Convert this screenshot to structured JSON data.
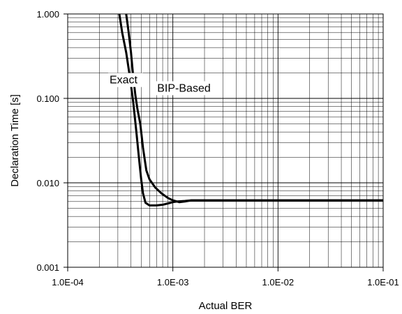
{
  "chart_data": {
    "type": "line",
    "xlabel": "Actual BER",
    "ylabel": "Declaration Time  [s]",
    "x_scale": "log",
    "y_scale": "log",
    "xlim": [
      0.0001,
      0.1
    ],
    "ylim": [
      0.001,
      1.0
    ],
    "grid": true,
    "x_ticks": [
      {
        "value": 0.0001,
        "label": "1.0E-04"
      },
      {
        "value": 0.001,
        "label": "1.0E-03"
      },
      {
        "value": 0.01,
        "label": "1.0E-02"
      },
      {
        "value": 0.1,
        "label": "1.0E-01"
      }
    ],
    "y_ticks": [
      {
        "value": 0.001,
        "label": "0.001"
      },
      {
        "value": 0.01,
        "label": "0.010"
      },
      {
        "value": 0.1,
        "label": "0.100"
      },
      {
        "value": 1.0,
        "label": "1.000"
      }
    ],
    "series": [
      {
        "name": "Exact",
        "x": [
          0.00031,
          0.00033,
          0.00036,
          0.00039,
          0.00042,
          0.00045,
          0.00048,
          0.0005,
          0.00052,
          0.00055,
          0.0006,
          0.0007,
          0.0008,
          0.0009,
          0.001,
          0.0011,
          0.0013,
          0.0015,
          0.002,
          0.005,
          0.01,
          0.05,
          0.1
        ],
        "y": [
          1.0,
          0.6,
          0.35,
          0.18,
          0.09,
          0.04,
          0.018,
          0.011,
          0.0075,
          0.0058,
          0.0054,
          0.0054,
          0.0055,
          0.0057,
          0.0059,
          0.006,
          0.0061,
          0.0062,
          0.0062,
          0.0062,
          0.0062,
          0.0062,
          0.0062
        ]
      },
      {
        "name": "BIP-Based",
        "x": [
          0.00036,
          0.00038,
          0.0004,
          0.00042,
          0.00044,
          0.00046,
          0.00049,
          0.00052,
          0.00056,
          0.0006,
          0.00068,
          0.00078,
          0.0009,
          0.001,
          0.00115,
          0.0013,
          0.0015,
          0.002,
          0.005,
          0.01,
          0.05,
          0.1
        ],
        "y": [
          1.0,
          0.6,
          0.35,
          0.18,
          0.11,
          0.075,
          0.05,
          0.026,
          0.014,
          0.011,
          0.0088,
          0.0075,
          0.0066,
          0.0062,
          0.0059,
          0.006,
          0.0062,
          0.0062,
          0.0062,
          0.0062,
          0.0062,
          0.0062
        ]
      }
    ],
    "annotations": [
      {
        "text": "Exact",
        "x": 0.00025,
        "y": 0.15
      },
      {
        "text": "BIP-Based",
        "x": 0.00071,
        "y": 0.12
      }
    ]
  }
}
